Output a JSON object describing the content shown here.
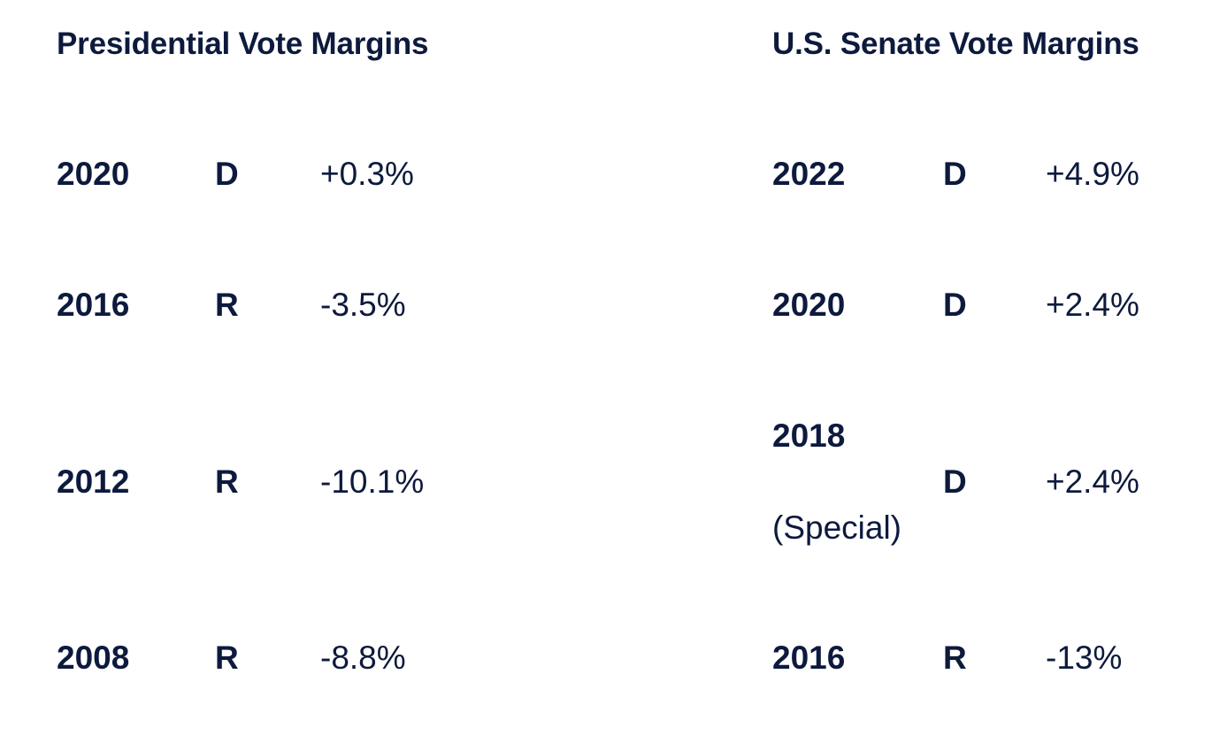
{
  "presidential": {
    "title": "Presidential Vote Margins",
    "rows": [
      {
        "year": "2020",
        "party": "D",
        "margin": "+0.3%"
      },
      {
        "year": "2016",
        "party": "R",
        "margin": "-3.5%"
      },
      {
        "year": "2012",
        "party": "R",
        "margin": "-10.1%"
      },
      {
        "year": "2008",
        "party": "R",
        "margin": "-8.8%"
      }
    ]
  },
  "senate": {
    "title": "U.S. Senate Vote Margins",
    "rows": [
      {
        "year": "2022",
        "note": "",
        "party": "D",
        "margin": "+4.9%"
      },
      {
        "year": "2020",
        "note": "",
        "party": "D",
        "margin": "+2.4%"
      },
      {
        "year": "2018",
        "note": "(Special)",
        "party": "D",
        "margin": "+2.4%"
      },
      {
        "year": "2016",
        "note": "",
        "party": "R",
        "margin": "-13%"
      }
    ]
  }
}
